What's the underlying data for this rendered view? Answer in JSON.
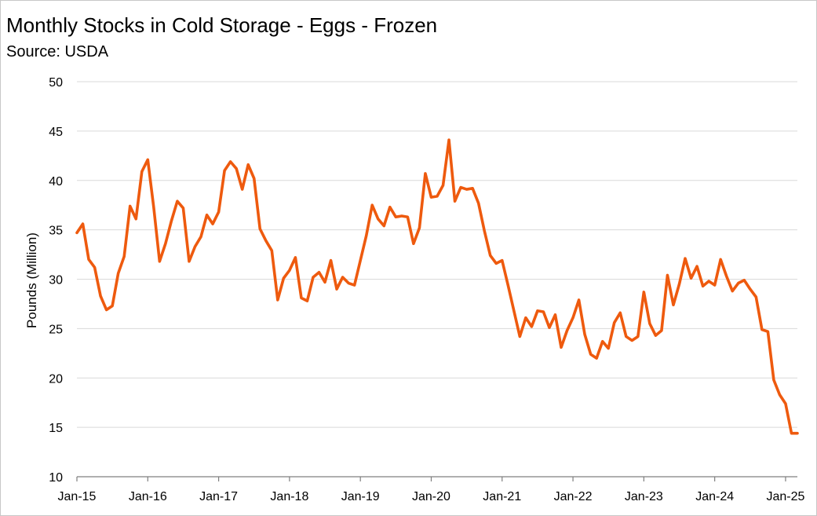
{
  "chart_data": {
    "type": "line",
    "title": "Monthly Stocks in Cold Storage - Eggs - Frozen",
    "subtitle": "Source: USDA",
    "xlabel": "",
    "ylabel": "Pounds (Million)",
    "ylim": [
      10,
      50
    ],
    "yticks": [
      10,
      15,
      20,
      25,
      30,
      35,
      40,
      45,
      50
    ],
    "xlim": [
      "2015-01",
      "2025-03"
    ],
    "xticks": [
      {
        "date": "2015-01",
        "label": "Jan-15"
      },
      {
        "date": "2016-01",
        "label": "Jan-16"
      },
      {
        "date": "2017-01",
        "label": "Jan-17"
      },
      {
        "date": "2018-01",
        "label": "Jan-18"
      },
      {
        "date": "2019-01",
        "label": "Jan-19"
      },
      {
        "date": "2020-01",
        "label": "Jan-20"
      },
      {
        "date": "2021-01",
        "label": "Jan-21"
      },
      {
        "date": "2022-01",
        "label": "Jan-22"
      },
      {
        "date": "2023-01",
        "label": "Jan-23"
      },
      {
        "date": "2024-01",
        "label": "Jan-24"
      },
      {
        "date": "2025-01",
        "label": "Jan-25"
      }
    ],
    "grid": "horizontal",
    "legend": "none",
    "colors": {
      "line": "#ee5a0e",
      "grid": "#d9d9d9",
      "axis": "#7f7f7f"
    },
    "x": [
      "2015-01",
      "2015-02",
      "2015-03",
      "2015-04",
      "2015-05",
      "2015-06",
      "2015-07",
      "2015-08",
      "2015-09",
      "2015-10",
      "2015-11",
      "2015-12",
      "2016-01",
      "2016-02",
      "2016-03",
      "2016-04",
      "2016-05",
      "2016-06",
      "2016-07",
      "2016-08",
      "2016-09",
      "2016-10",
      "2016-11",
      "2016-12",
      "2017-01",
      "2017-02",
      "2017-03",
      "2017-04",
      "2017-05",
      "2017-06",
      "2017-07",
      "2017-08",
      "2017-09",
      "2017-10",
      "2017-11",
      "2017-12",
      "2018-01",
      "2018-02",
      "2018-03",
      "2018-04",
      "2018-05",
      "2018-06",
      "2018-07",
      "2018-08",
      "2018-09",
      "2018-10",
      "2018-11",
      "2018-12",
      "2019-01",
      "2019-02",
      "2019-03",
      "2019-04",
      "2019-05",
      "2019-06",
      "2019-07",
      "2019-08",
      "2019-09",
      "2019-10",
      "2019-11",
      "2019-12",
      "2020-01",
      "2020-02",
      "2020-03",
      "2020-04",
      "2020-05",
      "2020-06",
      "2020-07",
      "2020-08",
      "2020-09",
      "2020-10",
      "2020-11",
      "2020-12",
      "2021-01",
      "2021-02",
      "2021-03",
      "2021-04",
      "2021-05",
      "2021-06",
      "2021-07",
      "2021-08",
      "2021-09",
      "2021-10",
      "2021-11",
      "2021-12",
      "2022-01",
      "2022-02",
      "2022-03",
      "2022-04",
      "2022-05",
      "2022-06",
      "2022-07",
      "2022-08",
      "2022-09",
      "2022-10",
      "2022-11",
      "2022-12",
      "2023-01",
      "2023-02",
      "2023-03",
      "2023-04",
      "2023-05",
      "2023-06",
      "2023-07",
      "2023-08",
      "2023-09",
      "2023-10",
      "2023-11",
      "2023-12",
      "2024-01",
      "2024-02",
      "2024-03",
      "2024-04",
      "2024-05",
      "2024-06",
      "2024-07",
      "2024-08",
      "2024-09",
      "2024-10",
      "2024-11",
      "2024-12",
      "2025-01",
      "2025-02",
      "2025-03"
    ],
    "series": [
      {
        "values": [
          34.7,
          35.6,
          32.0,
          31.2,
          28.3,
          26.9,
          27.3,
          30.6,
          32.3,
          37.4,
          36.1,
          40.9,
          42.1,
          37.3,
          31.8,
          33.6,
          35.9,
          37.9,
          37.2,
          31.8,
          33.3,
          34.3,
          36.5,
          35.6,
          36.8,
          41.0,
          41.9,
          41.2,
          39.1,
          41.6,
          40.2,
          35.1,
          33.9,
          32.9,
          27.9,
          30.1,
          30.9,
          32.2,
          28.1,
          27.8,
          30.2,
          30.7,
          29.7,
          31.9,
          29.0,
          30.2,
          29.6,
          29.4,
          31.9,
          34.4,
          37.5,
          36.1,
          35.4,
          37.3,
          36.3,
          36.4,
          36.3,
          33.6,
          35.2,
          40.7,
          38.3,
          38.4,
          39.5,
          44.1,
          37.9,
          39.3,
          39.1,
          39.2,
          37.7,
          34.9,
          32.4,
          31.6,
          31.9,
          29.4,
          26.8,
          24.2,
          26.1,
          25.2,
          26.8,
          26.7,
          25.1,
          26.4,
          23.1,
          24.8,
          26.1,
          27.9,
          24.4,
          22.4,
          22.0,
          23.7,
          23.0,
          25.6,
          26.6,
          24.2,
          23.8,
          24.2,
          28.7,
          25.5,
          24.3,
          24.8,
          30.4,
          27.4,
          29.5,
          32.1,
          30.1,
          31.3,
          29.3,
          29.8,
          29.4,
          32.0,
          30.3,
          28.8,
          29.6,
          29.9,
          29.0,
          28.2,
          24.9,
          24.7,
          19.8,
          18.3,
          17.4,
          14.4,
          14.4
        ]
      }
    ]
  }
}
